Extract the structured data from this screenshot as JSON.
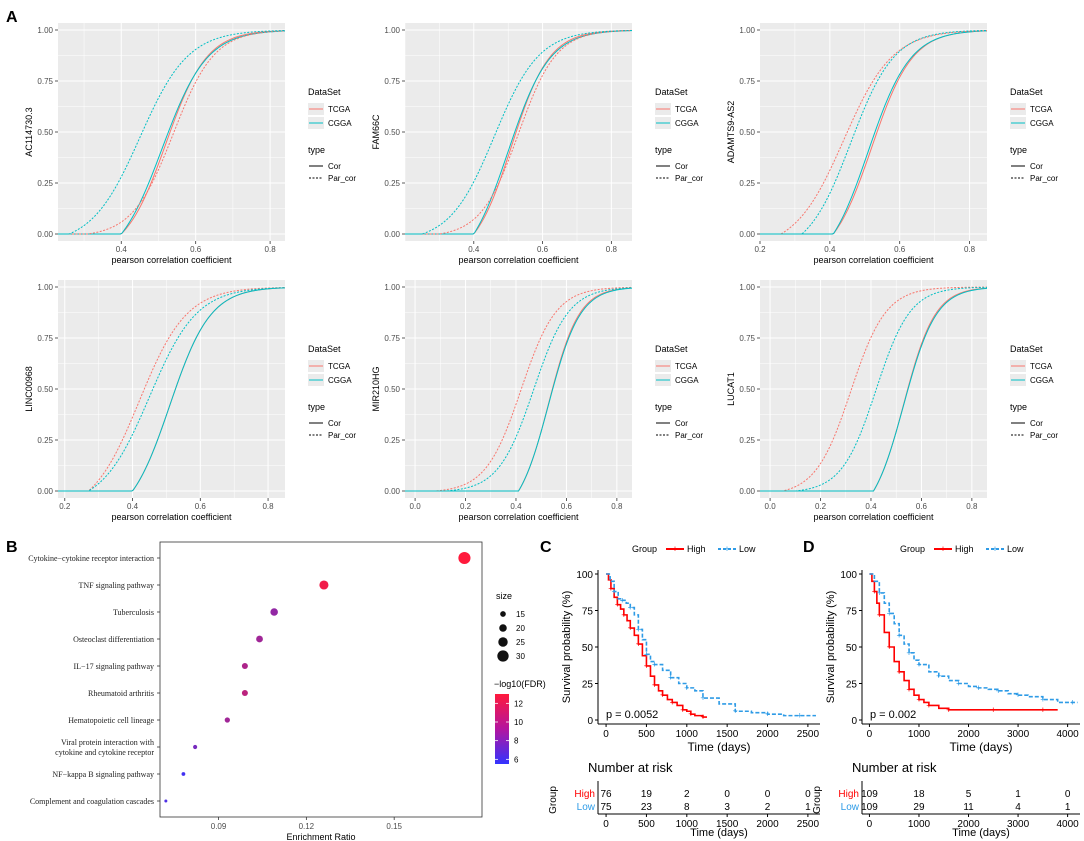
{
  "colors": {
    "tcga": "#F8766D",
    "cgga": "#00BFC4",
    "panel_bg": "#EBEBEB",
    "high": "#FF0000",
    "low": "#2E9BE6",
    "fdr_low": "#3333FF",
    "fdr_high": "#FF1A3C"
  },
  "panel_labels": [
    "A",
    "B",
    "C",
    "D"
  ],
  "chart_data": [
    {
      "type": "line",
      "panel": "A1",
      "ylabel": "AC114730.3",
      "xlabel": "pearson correlation coefficient",
      "xlim": [
        0.23,
        0.84
      ],
      "ylim": [
        0,
        1
      ],
      "xticks": [
        "0.4",
        "0.6",
        "0.8"
      ],
      "yticks": [
        "0.00",
        "0.25",
        "0.50",
        "0.75",
        "1.00"
      ],
      "legend": {
        "title1": "DataSet",
        "items1": [
          "TCGA",
          "CGGA"
        ],
        "title2": "type",
        "items2": [
          "Cor",
          "Par_cor"
        ]
      },
      "series": [
        {
          "name": "TCGA Cor",
          "dataset": "TCGA",
          "type": "Cor",
          "x0": 0.4,
          "mid": 0.52,
          "scale": 0.055
        },
        {
          "name": "CGGA Cor",
          "dataset": "CGGA",
          "type": "Cor",
          "x0": 0.4,
          "mid": 0.51,
          "scale": 0.06
        },
        {
          "name": "TCGA Par_cor",
          "dataset": "TCGA",
          "type": "Par_cor",
          "x0": 0.31,
          "mid": 0.54,
          "scale": 0.055
        },
        {
          "name": "CGGA Par_cor",
          "dataset": "CGGA",
          "type": "Par_cor",
          "x0": 0.26,
          "mid": 0.45,
          "scale": 0.065
        }
      ]
    },
    {
      "type": "line",
      "panel": "A2",
      "ylabel": "FAM66C",
      "xlabel": "pearson correlation coefficient",
      "xlim": [
        0.2,
        0.86
      ],
      "ylim": [
        0,
        1
      ],
      "xticks": [
        "0.4",
        "0.6",
        "0.8"
      ],
      "yticks": [
        "0.00",
        "0.25",
        "0.50",
        "0.75",
        "1.00"
      ],
      "legend": {
        "title1": "DataSet",
        "items1": [
          "TCGA",
          "CGGA"
        ],
        "title2": "type",
        "items2": [
          "Cor",
          "Par_cor"
        ]
      },
      "series": [
        {
          "name": "TCGA Cor",
          "dataset": "TCGA",
          "type": "Cor",
          "x0": 0.4,
          "mid": 0.51,
          "scale": 0.055
        },
        {
          "name": "CGGA Cor",
          "dataset": "CGGA",
          "type": "Cor",
          "x0": 0.4,
          "mid": 0.5,
          "scale": 0.06
        },
        {
          "name": "TCGA Par_cor",
          "dataset": "TCGA",
          "type": "Par_cor",
          "x0": 0.3,
          "mid": 0.53,
          "scale": 0.055
        },
        {
          "name": "CGGA Par_cor",
          "dataset": "CGGA",
          "type": "Par_cor",
          "x0": 0.25,
          "mid": 0.46,
          "scale": 0.065
        }
      ]
    },
    {
      "type": "line",
      "panel": "A3",
      "ylabel": "ADAMTS9-AS2",
      "xlabel": "pearson correlation coefficient",
      "xlim": [
        0.2,
        0.85
      ],
      "ylim": [
        0,
        1
      ],
      "xticks": [
        "0.2",
        "0.4",
        "0.6",
        "0.8"
      ],
      "yticks": [
        "0.00",
        "0.25",
        "0.50",
        "0.75",
        "1.00"
      ],
      "legend": {
        "title1": "DataSet",
        "items1": [
          "TCGA",
          "CGGA"
        ],
        "title2": "type",
        "items2": [
          "Cor",
          "Par_cor"
        ]
      },
      "series": [
        {
          "name": "TCGA Cor",
          "dataset": "TCGA",
          "type": "Cor",
          "x0": 0.41,
          "mid": 0.52,
          "scale": 0.058
        },
        {
          "name": "CGGA Cor",
          "dataset": "CGGA",
          "type": "Cor",
          "x0": 0.41,
          "mid": 0.51,
          "scale": 0.06
        },
        {
          "name": "TCGA Par_cor",
          "dataset": "TCGA",
          "type": "Par_cor",
          "x0": 0.26,
          "mid": 0.44,
          "scale": 0.07
        },
        {
          "name": "CGGA Par_cor",
          "dataset": "CGGA",
          "type": "Par_cor",
          "x0": 0.32,
          "mid": 0.46,
          "scale": 0.062
        }
      ]
    },
    {
      "type": "line",
      "panel": "A4",
      "ylabel": "LINC00968",
      "xlabel": "pearson correlation coefficient",
      "xlim": [
        0.18,
        0.85
      ],
      "ylim": [
        0,
        1
      ],
      "xticks": [
        "0.2",
        "0.4",
        "0.6",
        "0.8"
      ],
      "yticks": [
        "0.00",
        "0.25",
        "0.50",
        "0.75",
        "1.00"
      ],
      "legend": {
        "title1": "DataSet",
        "items1": [
          "TCGA",
          "CGGA"
        ],
        "title2": "type",
        "items2": [
          "Cor",
          "Par_cor"
        ]
      },
      "series": [
        {
          "name": "TCGA Cor",
          "dataset": "TCGA",
          "type": "Cor",
          "x0": 0.4,
          "mid": 0.51,
          "scale": 0.06
        },
        {
          "name": "CGGA Cor",
          "dataset": "CGGA",
          "type": "Cor",
          "x0": 0.4,
          "mid": 0.51,
          "scale": 0.06
        },
        {
          "name": "TCGA Par_cor",
          "dataset": "TCGA",
          "type": "Par_cor",
          "x0": 0.27,
          "mid": 0.42,
          "scale": 0.07
        },
        {
          "name": "CGGA Par_cor",
          "dataset": "CGGA",
          "type": "Par_cor",
          "x0": 0.27,
          "mid": 0.45,
          "scale": 0.07
        }
      ]
    },
    {
      "type": "line",
      "panel": "A5",
      "ylabel": "MIR210HG",
      "xlabel": "pearson correlation coefficient",
      "xlim": [
        -0.04,
        0.86
      ],
      "ylim": [
        0,
        1
      ],
      "xticks": [
        "0.0",
        "0.2",
        "0.4",
        "0.6",
        "0.8"
      ],
      "yticks": [
        "0.00",
        "0.25",
        "0.50",
        "0.75",
        "1.00"
      ],
      "legend": {
        "title1": "DataSet",
        "items1": [
          "TCGA",
          "CGGA"
        ],
        "title2": "type",
        "items2": [
          "Cor",
          "Par_cor"
        ]
      },
      "series": [
        {
          "name": "TCGA Cor",
          "dataset": "TCGA",
          "type": "Cor",
          "x0": 0.41,
          "mid": 0.53,
          "scale": 0.06
        },
        {
          "name": "CGGA Cor",
          "dataset": "CGGA",
          "type": "Cor",
          "x0": 0.41,
          "mid": 0.53,
          "scale": 0.062
        },
        {
          "name": "TCGA Par_cor",
          "dataset": "TCGA",
          "type": "Par_cor",
          "x0": 0.08,
          "mid": 0.42,
          "scale": 0.07
        },
        {
          "name": "CGGA Par_cor",
          "dataset": "CGGA",
          "type": "Par_cor",
          "x0": 0.12,
          "mid": 0.47,
          "scale": 0.07
        }
      ]
    },
    {
      "type": "line",
      "panel": "A6",
      "ylabel": "LUCAT1",
      "xlabel": "pearson correlation coefficient",
      "xlim": [
        -0.04,
        0.86
      ],
      "ylim": [
        0,
        1
      ],
      "xticks": [
        "0.0",
        "0.2",
        "0.4",
        "0.6",
        "0.8"
      ],
      "yticks": [
        "0.00",
        "0.25",
        "0.50",
        "0.75",
        "1.00"
      ],
      "legend": {
        "title1": "DataSet",
        "items1": [
          "TCGA",
          "CGGA"
        ],
        "title2": "type",
        "items2": [
          "Cor",
          "Par_cor"
        ]
      },
      "series": [
        {
          "name": "TCGA Cor",
          "dataset": "TCGA",
          "type": "Cor",
          "x0": 0.41,
          "mid": 0.53,
          "scale": 0.062
        },
        {
          "name": "CGGA Cor",
          "dataset": "CGGA",
          "type": "Cor",
          "x0": 0.41,
          "mid": 0.53,
          "scale": 0.064
        },
        {
          "name": "TCGA Par_cor",
          "dataset": "TCGA",
          "type": "Par_cor",
          "x0": 0.05,
          "mid": 0.32,
          "scale": 0.07
        },
        {
          "name": "CGGA Par_cor",
          "dataset": "CGGA",
          "type": "Par_cor",
          "x0": 0.1,
          "mid": 0.42,
          "scale": 0.068
        }
      ]
    },
    {
      "type": "scatter",
      "panel": "B",
      "xlabel": "Enrichment Ratio",
      "xlim": [
        0.07,
        0.18
      ],
      "xticks": [
        0.09,
        0.12,
        0.15
      ],
      "xtick_labels": [
        "0.09",
        "0.12",
        "0.15"
      ],
      "categories": [
        "Cytokine−cytokine receptor interaction",
        "TNF signaling pathway",
        "Tuberculosis",
        "Osteoclast differentiation",
        "IL−17 signaling pathway",
        "Rheumatoid arthritis",
        "Hematopoietic cell lineage",
        "Viral protein interaction with cytokine and cytokine receptor",
        "NF−kappa B signaling pathway",
        "Complement and coagulation cascades"
      ],
      "category_lines": [
        [
          "Cytokine−cytokine receptor interaction"
        ],
        [
          "TNF signaling pathway"
        ],
        [
          "Tuberculosis"
        ],
        [
          "Osteoclast differentiation"
        ],
        [
          "IL−17 signaling pathway"
        ],
        [
          "Rheumatoid arthritis"
        ],
        [
          "Hematopoietic cell lineage"
        ],
        [
          "Viral protein interaction with",
          "cytokine and cytokine receptor"
        ],
        [
          "NF−kappa B signaling pathway"
        ],
        [
          "Complement and coagulation cascades"
        ]
      ],
      "enrichment_ratio": [
        0.174,
        0.126,
        0.109,
        0.104,
        0.099,
        0.099,
        0.093,
        0.082,
        0.078,
        0.072
      ],
      "size": [
        32,
        24,
        20,
        18,
        16,
        16,
        14,
        11,
        10,
        8
      ],
      "neg_log10_fdr": [
        13,
        12.5,
        9,
        9.5,
        10,
        10.5,
        9.5,
        8,
        6,
        6.5
      ],
      "size_legend": {
        "title": "size",
        "values": [
          "15",
          "20",
          "25",
          "30"
        ]
      },
      "color_legend": {
        "title": "−log10(FDR)",
        "ticks": [
          "12",
          "10",
          "8",
          "6"
        ],
        "range": [
          5.5,
          13
        ]
      }
    },
    {
      "type": "line",
      "panel": "C",
      "subtype": "kaplan-meier",
      "legend": {
        "title": "Group",
        "items": [
          "High",
          "Low"
        ]
      },
      "ylabel": "Survival probability (%)",
      "xlabel": "Time (days)",
      "xlim": [
        -100,
        2650
      ],
      "ylim": [
        0,
        100
      ],
      "xticks": [
        "0",
        "500",
        "1000",
        "1500",
        "2000",
        "2500"
      ],
      "yticks": [
        "0",
        "25",
        "50",
        "75",
        "100"
      ],
      "pvalue": "p = 0.0052",
      "series": [
        {
          "name": "High",
          "x": [
            0,
            30,
            60,
            100,
            140,
            180,
            220,
            260,
            300,
            350,
            400,
            450,
            500,
            550,
            600,
            650,
            700,
            760,
            820,
            880,
            950,
            1000,
            1050,
            1100,
            1200,
            1250
          ],
          "y": [
            100,
            96,
            90,
            84,
            79,
            76,
            72,
            68,
            63,
            58,
            52,
            44,
            37,
            30,
            24,
            20,
            17,
            14,
            12,
            10,
            7,
            6,
            4,
            3,
            2,
            2
          ]
        },
        {
          "name": "Low",
          "x": [
            0,
            50,
            100,
            150,
            200,
            250,
            300,
            350,
            400,
            450,
            500,
            550,
            600,
            700,
            800,
            900,
            1000,
            1100,
            1200,
            1400,
            1600,
            1800,
            2000,
            2200,
            2400,
            2600
          ],
          "y": [
            100,
            95,
            88,
            83,
            82,
            80,
            77,
            72,
            62,
            55,
            45,
            40,
            38,
            34,
            29,
            25,
            22,
            20,
            15,
            11,
            6,
            5,
            4,
            3,
            3,
            3
          ]
        }
      ],
      "risk_table": {
        "title": "Number at risk",
        "group_label": "Group",
        "rows": [
          {
            "group": "High",
            "values": [
              "76",
              "19",
              "2",
              "0",
              "0",
              "0"
            ]
          },
          {
            "group": "Low",
            "values": [
              "75",
              "23",
              "8",
              "3",
              "2",
              "1"
            ]
          }
        ]
      }
    },
    {
      "type": "line",
      "panel": "D",
      "subtype": "kaplan-meier",
      "legend": {
        "title": "Group",
        "items": [
          "High",
          "Low"
        ]
      },
      "ylabel": "Survival probability (%)",
      "xlabel": "Time (days)",
      "xlim": [
        -150,
        4250
      ],
      "ylim": [
        0,
        100
      ],
      "xticks": [
        "0",
        "1000",
        "2000",
        "3000",
        "4000"
      ],
      "yticks": [
        "0",
        "25",
        "50",
        "75",
        "100"
      ],
      "pvalue": "p = 0.002",
      "series": [
        {
          "name": "High",
          "x": [
            0,
            50,
            100,
            150,
            200,
            300,
            400,
            500,
            600,
            700,
            800,
            900,
            1000,
            1100,
            1200,
            1400,
            1600,
            2000,
            2500,
            3000,
            3500,
            3800
          ],
          "y": [
            100,
            95,
            88,
            80,
            72,
            60,
            50,
            40,
            33,
            27,
            21,
            17,
            14,
            12,
            10,
            8,
            7,
            7,
            7,
            7,
            7,
            7
          ]
        },
        {
          "name": "Low",
          "x": [
            0,
            100,
            200,
            300,
            400,
            500,
            600,
            700,
            800,
            900,
            1000,
            1200,
            1400,
            1600,
            1800,
            2000,
            2200,
            2400,
            2600,
            2800,
            3000,
            3200,
            3500,
            3800,
            4100,
            4200
          ],
          "y": [
            100,
            95,
            87,
            80,
            73,
            66,
            58,
            52,
            46,
            41,
            38,
            33,
            30,
            27,
            25,
            23,
            22,
            21,
            20,
            18,
            17,
            16,
            14,
            12,
            12,
            12
          ]
        }
      ],
      "risk_table": {
        "title": "Number at risk",
        "group_label": "Group",
        "rows": [
          {
            "group": "High",
            "values": [
              "109",
              "18",
              "5",
              "1",
              "0"
            ]
          },
          {
            "group": "Low",
            "values": [
              "109",
              "29",
              "11",
              "4",
              "1"
            ]
          }
        ]
      }
    }
  ]
}
